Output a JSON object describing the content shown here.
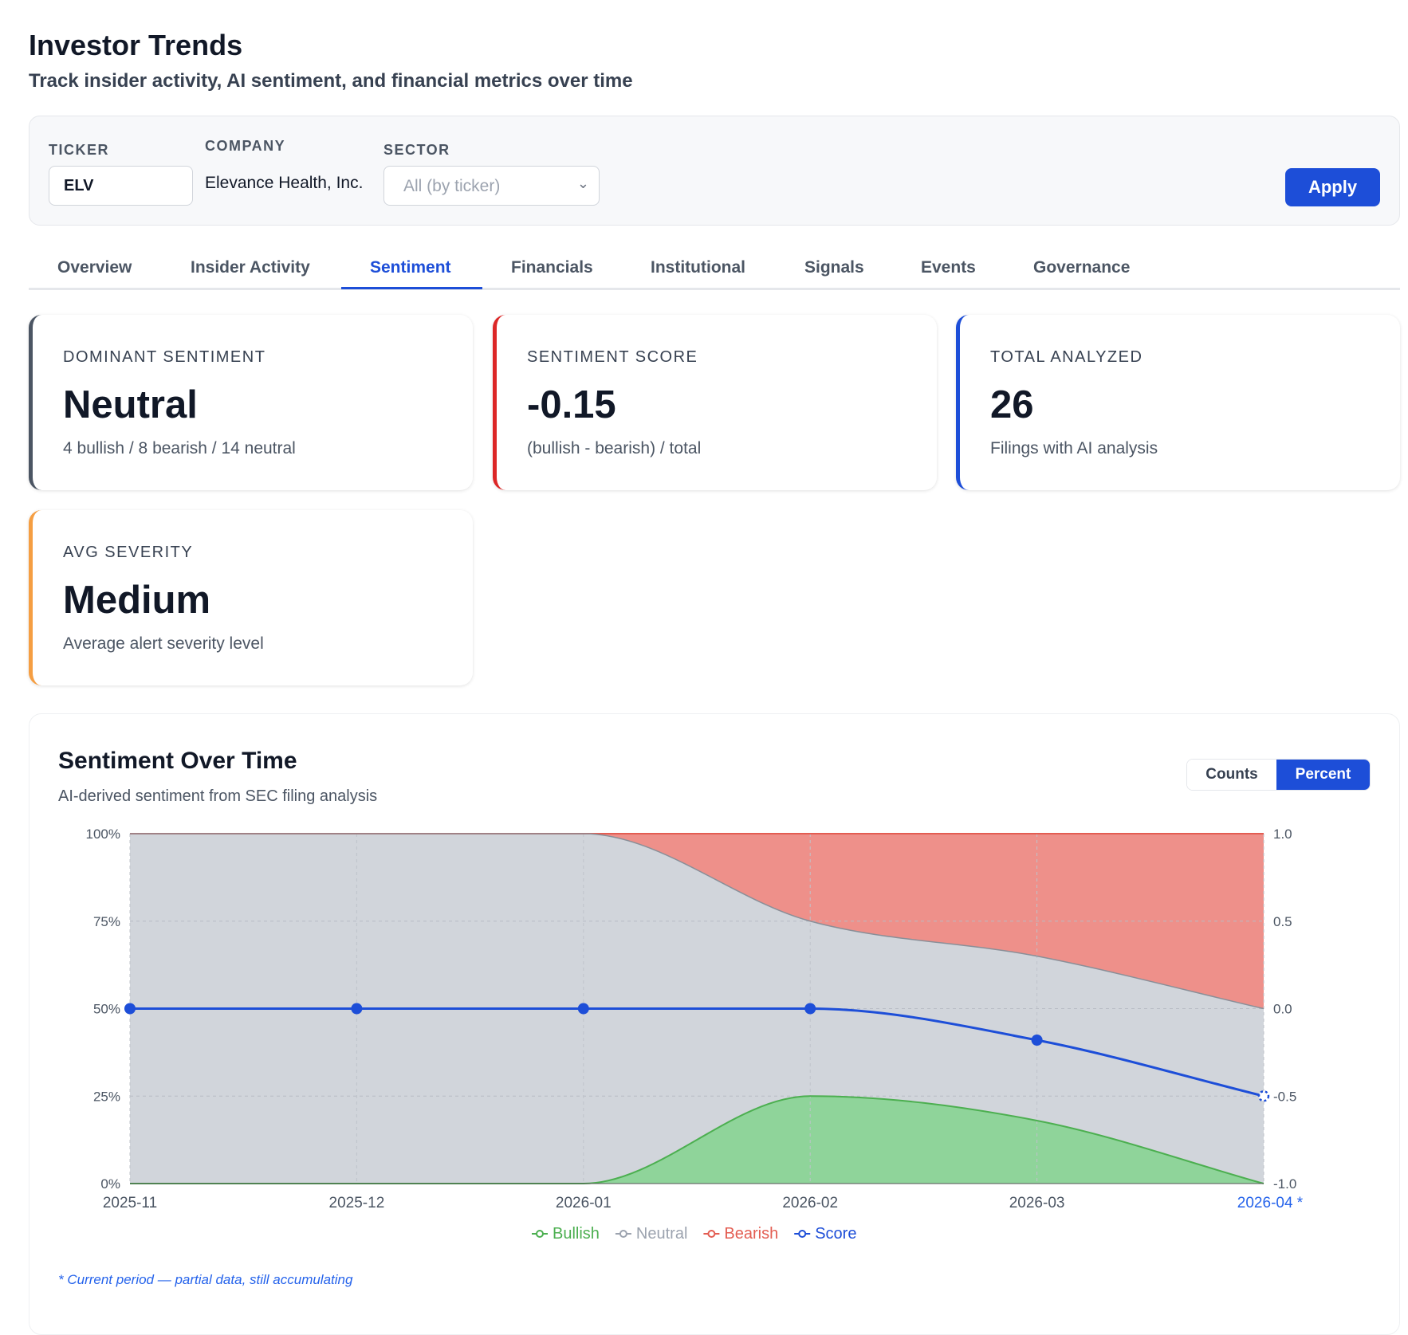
{
  "header": {
    "title": "Investor Trends",
    "subtitle": "Track insider activity, AI sentiment, and financial metrics over time"
  },
  "filters": {
    "ticker_label": "TICKER",
    "ticker_value": "ELV",
    "company_label": "COMPANY",
    "company_value": "Elevance Health, Inc.",
    "sector_label": "SECTOR",
    "sector_value": "All (by ticker)",
    "apply_label": "Apply"
  },
  "tabs": [
    {
      "label": "Overview"
    },
    {
      "label": "Insider Activity"
    },
    {
      "label": "Sentiment",
      "active": true
    },
    {
      "label": "Financials"
    },
    {
      "label": "Institutional"
    },
    {
      "label": "Signals"
    },
    {
      "label": "Events"
    },
    {
      "label": "Governance"
    }
  ],
  "cards": [
    {
      "label": "DOMINANT SENTIMENT",
      "value": "Neutral",
      "sub": "4 bullish / 8 bearish / 14 neutral",
      "color": "#4b5563"
    },
    {
      "label": "SENTIMENT SCORE",
      "value": "-0.15",
      "sub": "(bullish - bearish) / total",
      "color": "#dc2626"
    },
    {
      "label": "TOTAL ANALYZED",
      "value": "26",
      "sub": "Filings with AI analysis",
      "color": "#1d4ed8"
    },
    {
      "label": "AVG SEVERITY",
      "value": "Medium",
      "sub": "Average alert severity level",
      "color": "#f59e42"
    }
  ],
  "panel": {
    "title": "Sentiment Over Time",
    "subtitle": "AI-derived sentiment from SEC filing analysis",
    "toggle": [
      "Counts",
      "Percent"
    ],
    "toggle_active": "Percent",
    "footnote": "* Current period — partial data, still accumulating"
  },
  "chart_data": {
    "type": "area",
    "stacked": true,
    "mode": "percent",
    "categories": [
      "2025-11",
      "2025-12",
      "2026-01",
      "2026-02",
      "2026-03",
      "2026-04 *"
    ],
    "series": [
      {
        "name": "Bullish",
        "values": [
          0,
          0,
          0,
          25,
          18,
          0
        ],
        "color": "#4caf50",
        "fill": "#8fd49a"
      },
      {
        "name": "Neutral",
        "values": [
          100,
          100,
          100,
          50,
          47,
          50
        ],
        "color": "#9ca3af",
        "fill": "#d1d5db"
      },
      {
        "name": "Bearish",
        "values": [
          0,
          0,
          0,
          25,
          35,
          50
        ],
        "color": "#e35d52",
        "fill": "#ee908a"
      },
      {
        "name": "Score",
        "axis": "right",
        "values": [
          0,
          0,
          0,
          0,
          -0.18,
          -0.5
        ],
        "color": "#1d4ed8"
      }
    ],
    "y_left": {
      "range": [
        0,
        100
      ],
      "ticks": [
        "0%",
        "25%",
        "50%",
        "75%",
        "100%"
      ]
    },
    "y_right": {
      "range": [
        -1,
        1
      ],
      "ticks": [
        "-1.0",
        "-0.5",
        "0.0",
        "0.5",
        "1.0"
      ]
    },
    "last_period_partial": true,
    "grid": true,
    "legend": "bottom"
  }
}
